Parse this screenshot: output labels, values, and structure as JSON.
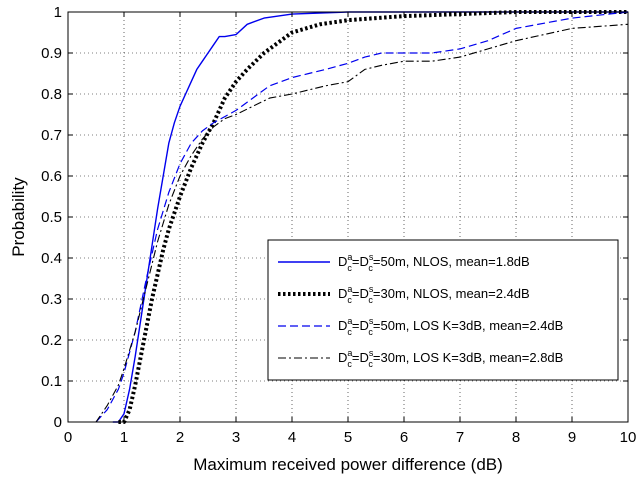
{
  "chart_data": {
    "type": "line",
    "xlabel": "Maximum received power difference (dB)",
    "ylabel": "Probability",
    "xlim": [
      0,
      10
    ],
    "ylim": [
      0,
      1
    ],
    "xticks": [
      "0",
      "1",
      "2",
      "3",
      "4",
      "5",
      "6",
      "7",
      "8",
      "9",
      "10"
    ],
    "yticks": [
      "0",
      "0.1",
      "0.2",
      "0.3",
      "0.4",
      "0.5",
      "0.6",
      "0.7",
      "0.8",
      "0.9",
      "1"
    ],
    "grid": true,
    "legend_position": "lower-right",
    "series": [
      {
        "legend": {
          "a": "D",
          "a_sup": "a",
          "a_sub": "c",
          "eq1": "=",
          "b": "D",
          "b_sup": "s",
          "b_sub": "c",
          "rest": "=50m, NLOS, mean=1.8dB"
        },
        "color": "#0000ee",
        "style": "solid",
        "x": [
          0.8,
          0.9,
          1.0,
          1.1,
          1.2,
          1.3,
          1.4,
          1.5,
          1.6,
          1.7,
          1.8,
          1.9,
          2.0,
          2.1,
          2.2,
          2.3,
          2.4,
          2.5,
          2.6,
          2.7,
          2.8,
          3.0,
          3.2,
          3.5,
          4.0,
          5.0,
          6.0,
          8.0,
          10.0
        ],
        "y": [
          0.0,
          0.0,
          0.02,
          0.08,
          0.16,
          0.25,
          0.34,
          0.43,
          0.52,
          0.6,
          0.68,
          0.73,
          0.77,
          0.8,
          0.83,
          0.86,
          0.88,
          0.9,
          0.92,
          0.94,
          0.94,
          0.945,
          0.97,
          0.985,
          0.995,
          1.0,
          1.0,
          1.0,
          1.0
        ]
      },
      {
        "legend": {
          "a": "D",
          "a_sup": "a",
          "a_sub": "c",
          "eq1": "=",
          "b": "D",
          "b_sup": "s",
          "b_sub": "c",
          "rest": "=30m, NLOS, mean=2.4dB"
        },
        "color": "#000000",
        "style": "dotted-thick",
        "x": [
          0.9,
          1.0,
          1.1,
          1.2,
          1.3,
          1.4,
          1.5,
          1.6,
          1.7,
          1.8,
          1.9,
          2.0,
          2.2,
          2.4,
          2.6,
          2.8,
          3.0,
          3.2,
          3.5,
          3.8,
          4.0,
          4.5,
          5.0,
          5.5,
          6.0,
          7.0,
          8.0,
          10.0
        ],
        "y": [
          0.0,
          0.0,
          0.03,
          0.09,
          0.16,
          0.23,
          0.3,
          0.36,
          0.42,
          0.47,
          0.51,
          0.55,
          0.62,
          0.68,
          0.73,
          0.79,
          0.83,
          0.86,
          0.9,
          0.93,
          0.95,
          0.97,
          0.98,
          0.985,
          0.99,
          0.995,
          1.0,
          1.0
        ]
      },
      {
        "legend": {
          "a": "D",
          "a_sup": "a",
          "a_sub": "c",
          "eq1": "=",
          "b": "D",
          "b_sup": "s",
          "b_sub": "c",
          "rest": "=50m, LOS K=3dB, mean=2.4dB"
        },
        "color": "#0000ee",
        "style": "dashed",
        "x": [
          0.5,
          0.7,
          0.9,
          1.0,
          1.2,
          1.4,
          1.6,
          1.8,
          2.0,
          2.2,
          2.4,
          2.6,
          2.8,
          3.0,
          3.3,
          3.6,
          4.0,
          4.3,
          4.6,
          5.0,
          5.3,
          5.6,
          6.0,
          6.5,
          7.0,
          7.5,
          8.0,
          9.0,
          10.0
        ],
        "y": [
          0.0,
          0.03,
          0.08,
          0.12,
          0.22,
          0.35,
          0.47,
          0.56,
          0.63,
          0.68,
          0.71,
          0.73,
          0.745,
          0.76,
          0.79,
          0.82,
          0.84,
          0.85,
          0.86,
          0.875,
          0.89,
          0.9,
          0.9,
          0.9,
          0.91,
          0.93,
          0.96,
          0.985,
          1.0
        ]
      },
      {
        "legend": {
          "a": "D",
          "a_sup": "a",
          "a_sub": "c",
          "eq1": "=",
          "b": "D",
          "b_sup": "s",
          "b_sub": "c",
          "rest": "=30m, LOS K=3dB, mean=2.8dB"
        },
        "color": "#000000",
        "style": "dashdot",
        "x": [
          0.2,
          0.5,
          0.7,
          0.9,
          1.0,
          1.2,
          1.4,
          1.6,
          1.8,
          2.0,
          2.2,
          2.4,
          2.6,
          2.8,
          3.0,
          3.3,
          3.6,
          4.0,
          4.3,
          4.6,
          5.0,
          5.3,
          5.6,
          6.0,
          6.5,
          7.0,
          7.5,
          8.0,
          9.0,
          10.0
        ],
        "y": [
          0.0,
          0.0,
          0.04,
          0.09,
          0.13,
          0.22,
          0.33,
          0.44,
          0.53,
          0.6,
          0.65,
          0.69,
          0.72,
          0.74,
          0.75,
          0.77,
          0.79,
          0.8,
          0.81,
          0.82,
          0.83,
          0.86,
          0.87,
          0.88,
          0.88,
          0.89,
          0.91,
          0.93,
          0.96,
          0.97
        ]
      }
    ]
  }
}
